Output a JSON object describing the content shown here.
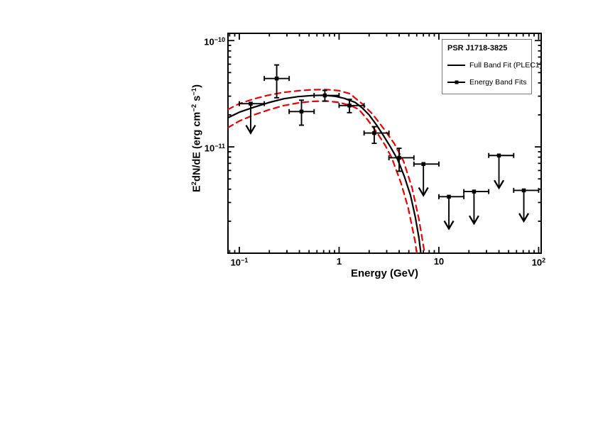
{
  "figure": {
    "background": "#ffffff"
  },
  "chart_data": {
    "type": "scatter",
    "title": "",
    "xlabel": "Energy (GeV)",
    "ylabel_parts": [
      {
        "t": "E"
      },
      {
        "sup": "2"
      },
      {
        "t": "dN/dE (erg cm"
      },
      {
        "sup": "−2"
      },
      {
        "t": " s"
      },
      {
        "sup": "−1"
      },
      {
        "t": ")"
      }
    ],
    "x_scale": "log",
    "y_scale": "log",
    "xlim": [
      0.077,
      106
    ],
    "ylim": [
      1e-12,
      1.17e-10
    ],
    "grid": false,
    "legend_position": "top-right-inside",
    "x_ticks": [
      {
        "v": 0.1,
        "base": "10",
        "sup": "−1"
      },
      {
        "v": 1,
        "base": "1"
      },
      {
        "v": 10,
        "base": "10"
      },
      {
        "v": 100,
        "base": "10",
        "sup": "2"
      }
    ],
    "y_ticks": [
      {
        "v": 1e-10,
        "base": "10",
        "sup": "−10"
      },
      {
        "v": 1e-11,
        "base": "10",
        "sup": "−11"
      }
    ],
    "colors": {
      "fit": "#000000",
      "band": "#ee0000",
      "data": "#000000"
    },
    "legend": {
      "title": "PSR J1718-3825",
      "entries": [
        {
          "label": "Full Band Fit (PLEC1)",
          "sample": "line"
        },
        {
          "label": "Energy Band Fits",
          "sample": "line-marker"
        }
      ]
    },
    "series": [
      {
        "name": "Full Band Fit (PLEC1)",
        "style": "solid",
        "color": "#000000",
        "points": [
          [
            0.077,
            1.88e-11
          ],
          [
            0.1,
            2.12e-11
          ],
          [
            0.14,
            2.36e-11
          ],
          [
            0.2,
            2.62e-11
          ],
          [
            0.28,
            2.84e-11
          ],
          [
            0.39,
            2.97e-11
          ],
          [
            0.54,
            3.04e-11
          ],
          [
            0.7,
            3.06e-11
          ],
          [
            0.9,
            3e-11
          ],
          [
            1.13,
            2.86e-11
          ],
          [
            1.45,
            2.62e-11
          ],
          [
            1.7,
            2.33e-11
          ],
          [
            2.0,
            2e-11
          ],
          [
            2.37,
            1.61e-11
          ],
          [
            2.78,
            1.28e-11
          ],
          [
            3.27,
            1e-11
          ],
          [
            3.86,
            7.6e-12
          ],
          [
            4.5,
            5.3e-12
          ],
          [
            5.2,
            3.5e-12
          ],
          [
            5.8,
            2.2e-12
          ],
          [
            6.3,
            1.4e-12
          ],
          [
            6.6,
            1e-12
          ]
        ]
      },
      {
        "name": "Fit uncertainty band upper",
        "style": "dashed",
        "color": "#ee0000",
        "points": [
          [
            0.077,
            2.25e-11
          ],
          [
            0.1,
            2.55e-11
          ],
          [
            0.14,
            2.83e-11
          ],
          [
            0.2,
            3.08e-11
          ],
          [
            0.28,
            3.26e-11
          ],
          [
            0.4,
            3.38e-11
          ],
          [
            0.55,
            3.45e-11
          ],
          [
            0.75,
            3.46e-11
          ],
          [
            1.0,
            3.38e-11
          ],
          [
            1.29,
            3.16e-11
          ],
          [
            1.45,
            2.88e-11
          ],
          [
            1.7,
            2.55e-11
          ],
          [
            2.17,
            2.03e-11
          ],
          [
            2.79,
            1.49e-11
          ],
          [
            3.56,
            1.08e-11
          ],
          [
            4.41,
            7.4e-12
          ],
          [
            5.4,
            4.1e-12
          ],
          [
            6.3,
            2.1e-12
          ],
          [
            7.2,
            1e-12
          ]
        ]
      },
      {
        "name": "Fit uncertainty band lower",
        "style": "dashed",
        "color": "#ee0000",
        "points": [
          [
            0.077,
            1.52e-11
          ],
          [
            0.1,
            1.75e-11
          ],
          [
            0.14,
            2e-11
          ],
          [
            0.2,
            2.24e-11
          ],
          [
            0.28,
            2.45e-11
          ],
          [
            0.4,
            2.6e-11
          ],
          [
            0.55,
            2.68e-11
          ],
          [
            0.75,
            2.7e-11
          ],
          [
            1.0,
            2.62e-11
          ],
          [
            1.3,
            2.45e-11
          ],
          [
            1.57,
            2.26e-11
          ],
          [
            1.94,
            1.79e-11
          ],
          [
            2.37,
            1.38e-11
          ],
          [
            2.87,
            1.05e-11
          ],
          [
            3.37,
            7.9e-12
          ],
          [
            4.2,
            4.5e-12
          ],
          [
            4.94,
            2.64e-12
          ],
          [
            5.77,
            1.3e-12
          ],
          [
            6.0,
            1e-12
          ]
        ]
      }
    ],
    "detections": [
      {
        "E": 0.237,
        "E_lo": 0.178,
        "E_hi": 0.316,
        "F": 4.4e-11,
        "F_lo": 2.9e-11,
        "F_hi": 5.9e-11
      },
      {
        "E": 0.42,
        "E_lo": 0.316,
        "E_hi": 0.562,
        "F": 2.15e-11,
        "F_lo": 1.6e-11,
        "F_hi": 2.75e-11
      },
      {
        "E": 0.72,
        "E_lo": 0.562,
        "E_hi": 1.0,
        "F": 3.05e-11,
        "F_lo": 2.7e-11,
        "F_hi": 3.4e-11
      },
      {
        "E": 1.27,
        "E_lo": 1.0,
        "E_hi": 1.78,
        "F": 2.45e-11,
        "F_lo": 2.1e-11,
        "F_hi": 2.8e-11
      },
      {
        "E": 2.25,
        "E_lo": 1.78,
        "E_hi": 3.16,
        "F": 1.35e-11,
        "F_lo": 1.08e-11,
        "F_hi": 1.55e-11
      },
      {
        "E": 4.0,
        "E_lo": 3.16,
        "E_hi": 5.62,
        "F": 7.9e-12,
        "F_lo": 5.9e-12,
        "F_hi": 9.7e-12
      }
    ],
    "upper_limits": [
      {
        "E": 0.13,
        "E_lo": 0.1,
        "E_hi": 0.178,
        "F": 2.55e-11,
        "arrow_tip": 1.35e-11
      },
      {
        "E": 7.0,
        "E_lo": 5.62,
        "E_hi": 10.0,
        "F": 6.9e-12,
        "arrow_tip": 3.5e-12
      },
      {
        "E": 12.6,
        "E_lo": 10.0,
        "E_hi": 17.8,
        "F": 3.4e-12,
        "arrow_tip": 1.7e-12
      },
      {
        "E": 22.5,
        "E_lo": 17.8,
        "E_hi": 31.6,
        "F": 3.8e-12,
        "arrow_tip": 1.9e-12
      },
      {
        "E": 40.0,
        "E_lo": 31.6,
        "E_hi": 56.2,
        "F": 8.3e-12,
        "arrow_tip": 4.1e-12
      },
      {
        "E": 71.0,
        "E_lo": 56.2,
        "E_hi": 100.0,
        "F": 3.9e-12,
        "arrow_tip": 2e-12
      }
    ]
  }
}
